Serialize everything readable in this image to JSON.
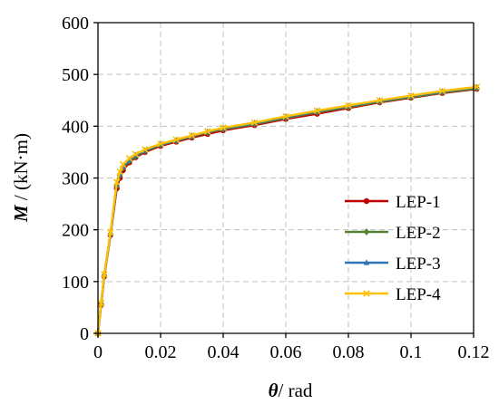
{
  "chart_data": {
    "type": "line",
    "xlabel_symbol": "θ",
    "xlabel_unit": "/ rad",
    "ylabel_symbol": "M",
    "ylabel_unit": " / (kN·m)",
    "xlim": [
      0,
      0.12
    ],
    "ylim": [
      0,
      600
    ],
    "x_ticks": [
      0,
      0.02,
      0.04,
      0.06,
      0.08,
      0.1,
      0.12
    ],
    "x_tick_labels": [
      "0",
      "0.02",
      "0.04",
      "0.06",
      "0.08",
      "0.1",
      "0.12"
    ],
    "y_ticks": [
      0,
      100,
      200,
      300,
      400,
      500,
      600
    ],
    "y_tick_labels": [
      "0",
      "100",
      "200",
      "300",
      "400",
      "500",
      "600"
    ],
    "grid": true,
    "legend_position": "lower-right",
    "series": [
      {
        "name": "LEP-1",
        "color": "#c00000",
        "marker": "circle",
        "points": [
          [
            0,
            0
          ],
          [
            0.001,
            55
          ],
          [
            0.002,
            110
          ],
          [
            0.004,
            190
          ],
          [
            0.006,
            280
          ],
          [
            0.007,
            300
          ],
          [
            0.008,
            315
          ],
          [
            0.01,
            330
          ],
          [
            0.012,
            340
          ],
          [
            0.015,
            350
          ],
          [
            0.02,
            362
          ],
          [
            0.025,
            370
          ],
          [
            0.03,
            378
          ],
          [
            0.035,
            385
          ],
          [
            0.04,
            392
          ],
          [
            0.05,
            402
          ],
          [
            0.06,
            414
          ],
          [
            0.07,
            424
          ],
          [
            0.08,
            435
          ],
          [
            0.09,
            446
          ],
          [
            0.1,
            455
          ],
          [
            0.11,
            464
          ],
          [
            0.121,
            472
          ]
        ]
      },
      {
        "name": "LEP-2",
        "color": "#548235",
        "marker": "diamond",
        "points": [
          [
            0,
            0
          ],
          [
            0.001,
            56
          ],
          [
            0.002,
            112
          ],
          [
            0.004,
            192
          ],
          [
            0.006,
            285
          ],
          [
            0.007,
            305
          ],
          [
            0.008,
            320
          ],
          [
            0.01,
            333
          ],
          [
            0.012,
            342
          ],
          [
            0.015,
            352
          ],
          [
            0.02,
            364
          ],
          [
            0.025,
            372
          ],
          [
            0.03,
            380
          ],
          [
            0.035,
            388
          ],
          [
            0.04,
            394
          ],
          [
            0.05,
            404
          ],
          [
            0.06,
            416
          ],
          [
            0.07,
            427
          ],
          [
            0.08,
            437
          ],
          [
            0.09,
            447
          ],
          [
            0.1,
            456
          ],
          [
            0.11,
            465
          ],
          [
            0.121,
            473
          ]
        ]
      },
      {
        "name": "LEP-3",
        "color": "#2e75b6",
        "marker": "triangle",
        "points": [
          [
            0,
            0
          ],
          [
            0.001,
            57
          ],
          [
            0.002,
            113
          ],
          [
            0.004,
            193
          ],
          [
            0.006,
            288
          ],
          [
            0.007,
            308
          ],
          [
            0.008,
            322
          ],
          [
            0.01,
            335
          ],
          [
            0.012,
            344
          ],
          [
            0.015,
            353
          ],
          [
            0.02,
            365
          ],
          [
            0.025,
            373
          ],
          [
            0.03,
            381
          ],
          [
            0.035,
            389
          ],
          [
            0.04,
            396
          ],
          [
            0.05,
            406
          ],
          [
            0.06,
            418
          ],
          [
            0.07,
            429
          ],
          [
            0.08,
            439
          ],
          [
            0.09,
            449
          ],
          [
            0.1,
            458
          ],
          [
            0.11,
            467
          ],
          [
            0.121,
            475
          ]
        ]
      },
      {
        "name": "LEP-4",
        "color": "#ffc000",
        "marker": "x",
        "points": [
          [
            0,
            0
          ],
          [
            0.001,
            58
          ],
          [
            0.002,
            114
          ],
          [
            0.004,
            195
          ],
          [
            0.006,
            292
          ],
          [
            0.007,
            312
          ],
          [
            0.008,
            326
          ],
          [
            0.01,
            338
          ],
          [
            0.012,
            346
          ],
          [
            0.015,
            355
          ],
          [
            0.02,
            366
          ],
          [
            0.025,
            374
          ],
          [
            0.03,
            382
          ],
          [
            0.035,
            390
          ],
          [
            0.04,
            397
          ],
          [
            0.05,
            407
          ],
          [
            0.06,
            419
          ],
          [
            0.07,
            430
          ],
          [
            0.08,
            440
          ],
          [
            0.09,
            450
          ],
          [
            0.1,
            459
          ],
          [
            0.11,
            468
          ],
          [
            0.121,
            476
          ]
        ]
      }
    ]
  }
}
